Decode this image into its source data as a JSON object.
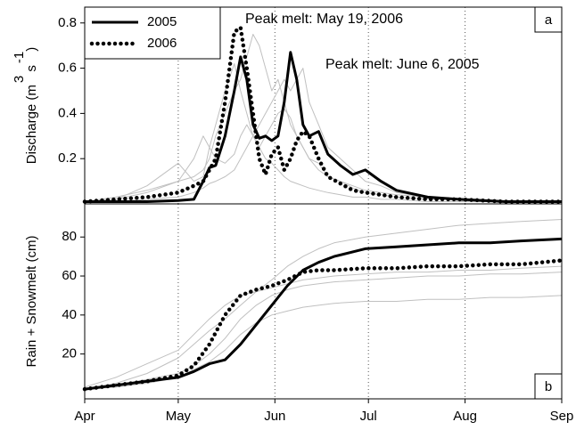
{
  "chart_data": [
    {
      "type": "line",
      "panel_label": "a",
      "ylabel": [
        "Discharge (m",
        "3",
        " s",
        "-1",
        ")"
      ],
      "annotations": [
        "Peak melt: May 19, 2006",
        "Peak melt: June 6, 2005"
      ],
      "legend": "upper left",
      "grid": true,
      "xlim": [
        0,
        153
      ],
      "xticks": [
        30,
        61,
        91,
        122
      ],
      "ylim": [
        0,
        0.87
      ],
      "yticks": [
        0.2,
        0.4,
        0.6,
        0.8
      ],
      "x": [
        0,
        10,
        20,
        30,
        35,
        38,
        40,
        42,
        45,
        48,
        50,
        52,
        54,
        56,
        58,
        60,
        62,
        64,
        66,
        68,
        70,
        72,
        75,
        78,
        82,
        86,
        90,
        95,
        100,
        110,
        120,
        135,
        153
      ],
      "series": [
        {
          "color": "#c0c0c0",
          "values": [
            0.01,
            0.02,
            0.05,
            0.1,
            0.12,
            0.15,
            0.2,
            0.3,
            0.4,
            0.5,
            0.55,
            0.65,
            0.75,
            0.7,
            0.6,
            0.5,
            0.55,
            0.45,
            0.35,
            0.3,
            0.25,
            0.2,
            0.18,
            0.12,
            0.1,
            0.08,
            0.06,
            0.05,
            0.04,
            0.03,
            0.02,
            0.01,
            0.01
          ]
        },
        {
          "color": "#c0c0c0",
          "values": [
            0.01,
            0.02,
            0.08,
            0.18,
            0.1,
            0.12,
            0.25,
            0.35,
            0.5,
            0.62,
            0.5,
            0.4,
            0.3,
            0.25,
            0.2,
            0.18,
            0.15,
            0.12,
            0.1,
            0.09,
            0.08,
            0.07,
            0.06,
            0.05,
            0.04,
            0.03,
            0.03,
            0.02,
            0.02,
            0.01,
            0.01,
            0.01,
            0.01
          ]
        },
        {
          "color": "#c0c0c0",
          "values": [
            0.01,
            0.01,
            0.02,
            0.03,
            0.05,
            0.07,
            0.09,
            0.1,
            0.12,
            0.15,
            0.2,
            0.25,
            0.3,
            0.35,
            0.4,
            0.45,
            0.5,
            0.55,
            0.5,
            0.55,
            0.6,
            0.45,
            0.35,
            0.25,
            0.2,
            0.15,
            0.1,
            0.08,
            0.05,
            0.03,
            0.02,
            0.01,
            0.01
          ]
        },
        {
          "color": "#c0c0c0",
          "values": [
            0.01,
            0.03,
            0.06,
            0.1,
            0.2,
            0.3,
            0.25,
            0.2,
            0.18,
            0.22,
            0.3,
            0.35,
            0.3,
            0.25,
            0.3,
            0.35,
            0.4,
            0.42,
            0.38,
            0.3,
            0.25,
            0.2,
            0.15,
            0.12,
            0.1,
            0.07,
            0.05,
            0.04,
            0.03,
            0.02,
            0.02,
            0.01,
            0.01
          ]
        },
        {
          "name": "2005",
          "color": "#000000",
          "style": "solid",
          "values": [
            0.01,
            0.01,
            0.01,
            0.015,
            0.02,
            0.1,
            0.16,
            0.17,
            0.3,
            0.5,
            0.65,
            0.55,
            0.35,
            0.29,
            0.3,
            0.28,
            0.3,
            0.45,
            0.67,
            0.55,
            0.35,
            0.3,
            0.32,
            0.22,
            0.17,
            0.13,
            0.15,
            0.1,
            0.06,
            0.03,
            0.02,
            0.01,
            0.01
          ]
        },
        {
          "name": "2006",
          "color": "#000000",
          "style": "dotted",
          "values": [
            0.01,
            0.02,
            0.03,
            0.05,
            0.08,
            0.1,
            0.15,
            0.2,
            0.45,
            0.76,
            0.78,
            0.6,
            0.4,
            0.2,
            0.13,
            0.22,
            0.25,
            0.15,
            0.2,
            0.28,
            0.32,
            0.3,
            0.2,
            0.12,
            0.09,
            0.06,
            0.05,
            0.04,
            0.03,
            0.02,
            0.02,
            0.01,
            0.01
          ]
        }
      ]
    },
    {
      "type": "line",
      "panel_label": "b",
      "ylabel": [
        "Rain + Snowmelt (cm)"
      ],
      "grid": true,
      "xlim": [
        0,
        153
      ],
      "xticks": [
        {
          "value": 0,
          "label": "Apr"
        },
        {
          "value": 30,
          "label": "May"
        },
        {
          "value": 61,
          "label": "Jun"
        },
        {
          "value": 91,
          "label": "Jul"
        },
        {
          "value": 122,
          "label": "Aug"
        },
        {
          "value": 153,
          "label": "Sep"
        }
      ],
      "ylim": [
        -3,
        97
      ],
      "yticks": [
        20,
        40,
        60,
        80
      ],
      "x": [
        0,
        10,
        20,
        30,
        35,
        40,
        45,
        50,
        55,
        60,
        65,
        70,
        75,
        80,
        90,
        100,
        110,
        120,
        130,
        140,
        153
      ],
      "series": [
        {
          "color": "#c0c0c0",
          "values": [
            2,
            5,
            10,
            18,
            25,
            32,
            38,
            45,
            52,
            58,
            65,
            70,
            74,
            77,
            80,
            82,
            84,
            86,
            87,
            88,
            89
          ]
        },
        {
          "color": "#c0c0c0",
          "values": [
            2,
            3,
            5,
            8,
            12,
            16,
            22,
            30,
            36,
            40,
            42,
            44,
            45,
            46,
            47,
            47,
            48,
            48,
            49,
            49,
            50
          ]
        },
        {
          "color": "#c0c0c0",
          "values": [
            3,
            8,
            15,
            22,
            30,
            38,
            45,
            50,
            52,
            54,
            56,
            58,
            59,
            60,
            61,
            62,
            62,
            63,
            63,
            64,
            65
          ]
        },
        {
          "color": "#c0c0c0",
          "values": [
            2,
            4,
            7,
            10,
            14,
            20,
            28,
            38,
            45,
            50,
            53,
            55,
            56,
            57,
            58,
            59,
            60,
            60,
            61,
            61,
            62
          ]
        },
        {
          "name": "2005",
          "color": "#000000",
          "style": "solid",
          "values": [
            2,
            4,
            6,
            8,
            11,
            15,
            17,
            25,
            35,
            45,
            55,
            63,
            67,
            70,
            74,
            75,
            76,
            77,
            77,
            78,
            79
          ]
        },
        {
          "name": "2006",
          "color": "#000000",
          "style": "dotted",
          "values": [
            2,
            4,
            6,
            9,
            14,
            25,
            40,
            50,
            53,
            55,
            58,
            62,
            63,
            63,
            64,
            64,
            65,
            65,
            66,
            66,
            68
          ]
        }
      ]
    }
  ]
}
